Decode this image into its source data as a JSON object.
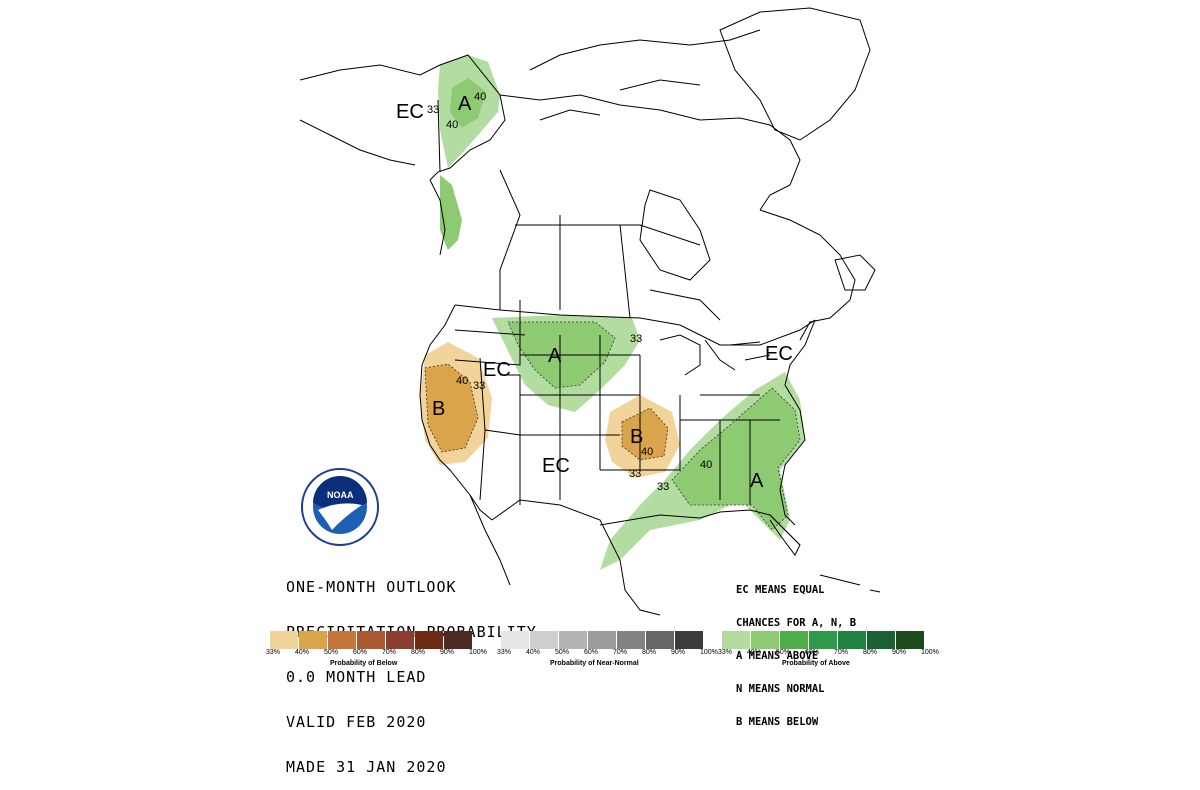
{
  "map": {
    "region_labels": [
      {
        "id": "alaska-ec",
        "text": "EC"
      },
      {
        "id": "alaska-a",
        "text": "A"
      },
      {
        "id": "alaska-33",
        "text": "33"
      },
      {
        "id": "alaska-40a",
        "text": "40"
      },
      {
        "id": "alaska-40b",
        "text": "40"
      },
      {
        "id": "plains-a",
        "text": "A"
      },
      {
        "id": "plains-33",
        "text": "33"
      },
      {
        "id": "west-ec",
        "text": "EC"
      },
      {
        "id": "ca-b",
        "text": "B"
      },
      {
        "id": "ca-40",
        "text": "40"
      },
      {
        "id": "ca-33",
        "text": "33"
      },
      {
        "id": "ozark-b",
        "text": "B"
      },
      {
        "id": "ozark-40",
        "text": "40"
      },
      {
        "id": "ozark-33",
        "text": "33"
      },
      {
        "id": "sw-ec",
        "text": "EC"
      },
      {
        "id": "ne-ec",
        "text": "EC"
      },
      {
        "id": "se-a",
        "text": "A"
      },
      {
        "id": "se-40",
        "text": "40"
      },
      {
        "id": "se-33",
        "text": "33"
      }
    ]
  },
  "info_lines": [
    "ONE-MONTH OUTLOOK",
    "PRECIPITATION PROBABILITY",
    "0.0 MONTH LEAD",
    "VALID FEB 2020",
    "MADE 31 JAN 2020"
  ],
  "legend_notes": [
    "EC MEANS EQUAL",
    "CHANCES FOR A, N, B",
    "A MEANS ABOVE",
    "N MEANS NORMAL",
    "B MEANS BELOW"
  ],
  "scales": [
    {
      "id": "below",
      "title": "Probability of Below",
      "colors": [
        "#f2d49b",
        "#d9a44a",
        "#c4763a",
        "#a85a32",
        "#8c3e30",
        "#6e2c14",
        "#4c2a22"
      ],
      "ticks": [
        "33%",
        "40%",
        "50%",
        "60%",
        "70%",
        "80%",
        "90%",
        "100%"
      ]
    },
    {
      "id": "normal",
      "title": "Probability of Near-Normal",
      "colors": [
        "#e6e6e6",
        "#cfcfcf",
        "#b4b4b4",
        "#9b9b9b",
        "#828282",
        "#666666",
        "#3c3c3c"
      ],
      "ticks": [
        "33%",
        "40%",
        "50%",
        "60%",
        "70%",
        "80%",
        "90%",
        "100%"
      ]
    },
    {
      "id": "above",
      "title": "Probability of Above",
      "colors": [
        "#b3dca0",
        "#8dca72",
        "#4fb04b",
        "#2f9a4a",
        "#1e8240",
        "#1a6032",
        "#1d4a1c"
      ],
      "ticks": [
        "33%",
        "40%",
        "50%",
        "60%",
        "70%",
        "80%",
        "90%",
        "100%"
      ]
    }
  ],
  "colors": {
    "above_33": "#b3dca0",
    "above_40": "#8dca72",
    "below_33": "#f2d49b",
    "below_40": "#d9a44a"
  },
  "logo": {
    "text": "NOAA"
  }
}
